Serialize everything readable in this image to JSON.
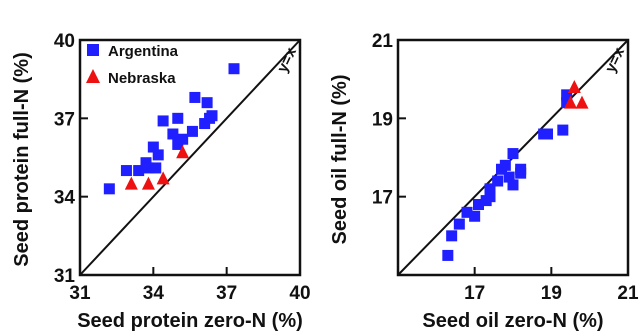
{
  "chart_data": [
    {
      "type": "scatter",
      "xlabel": "Seed protein zero-N (%)",
      "ylabel": "Seed protein full-N (%)",
      "xlim": [
        31,
        40
      ],
      "ylim": [
        31,
        40
      ],
      "xticks": [
        "31",
        "34",
        "37",
        "40"
      ],
      "yticks": [
        "31",
        "34",
        "37",
        "40"
      ],
      "reference_line": {
        "label": "y=x",
        "from": [
          31,
          31
        ],
        "to": [
          40,
          40
        ]
      },
      "legend": {
        "placement": "top-left"
      },
      "series": [
        {
          "name": "Argentina",
          "marker": "square",
          "color": "#1f1fff",
          "points": [
            [
              32.2,
              34.3
            ],
            [
              32.9,
              35.0
            ],
            [
              33.4,
              35.0
            ],
            [
              33.7,
              35.3
            ],
            [
              33.8,
              35.1
            ],
            [
              34.0,
              35.9
            ],
            [
              34.1,
              35.1
            ],
            [
              34.2,
              35.6
            ],
            [
              34.4,
              36.9
            ],
            [
              34.8,
              36.4
            ],
            [
              35.0,
              36.0
            ],
            [
              35.0,
              37.0
            ],
            [
              35.2,
              36.2
            ],
            [
              35.6,
              36.5
            ],
            [
              35.7,
              37.8
            ],
            [
              36.1,
              36.8
            ],
            [
              36.2,
              37.6
            ],
            [
              36.3,
              37.0
            ],
            [
              36.4,
              37.1
            ],
            [
              37.3,
              38.9
            ]
          ]
        },
        {
          "name": "Nebraska",
          "marker": "triangle",
          "color": "#ee1111",
          "points": [
            [
              33.1,
              34.5
            ],
            [
              33.8,
              34.5
            ],
            [
              34.4,
              34.7
            ],
            [
              35.2,
              35.7
            ]
          ]
        }
      ]
    },
    {
      "type": "scatter",
      "xlabel": "Seed oil zero-N (%)",
      "ylabel": "Seed oil full-N (%)",
      "xlim": [
        15,
        21
      ],
      "ylim": [
        15,
        21
      ],
      "xticks": [
        "17",
        "19",
        "21"
      ],
      "yticks": [
        "17",
        "19",
        "21"
      ],
      "reference_line": {
        "label": "y=x",
        "from": [
          15,
          15
        ],
        "to": [
          21,
          21
        ]
      },
      "series": [
        {
          "name": "Argentina",
          "marker": "square",
          "color": "#1f1fff",
          "points": [
            [
              16.3,
              15.5
            ],
            [
              16.4,
              16.0
            ],
            [
              16.6,
              16.3
            ],
            [
              16.8,
              16.6
            ],
            [
              17.0,
              16.5
            ],
            [
              17.1,
              16.8
            ],
            [
              17.3,
              16.9
            ],
            [
              17.4,
              17.0
            ],
            [
              17.4,
              17.2
            ],
            [
              17.6,
              17.4
            ],
            [
              17.7,
              17.7
            ],
            [
              17.8,
              17.8
            ],
            [
              17.9,
              17.5
            ],
            [
              18.0,
              17.3
            ],
            [
              18.0,
              18.1
            ],
            [
              18.2,
              17.6
            ],
            [
              18.2,
              17.7
            ],
            [
              18.8,
              18.6
            ],
            [
              18.9,
              18.6
            ],
            [
              19.3,
              18.7
            ],
            [
              19.4,
              19.4
            ],
            [
              19.4,
              19.6
            ]
          ]
        },
        {
          "name": "Nebraska",
          "marker": "triangle",
          "color": "#ee1111",
          "points": [
            [
              19.5,
              19.4
            ],
            [
              19.6,
              19.8
            ],
            [
              19.8,
              19.4
            ]
          ]
        }
      ]
    }
  ]
}
